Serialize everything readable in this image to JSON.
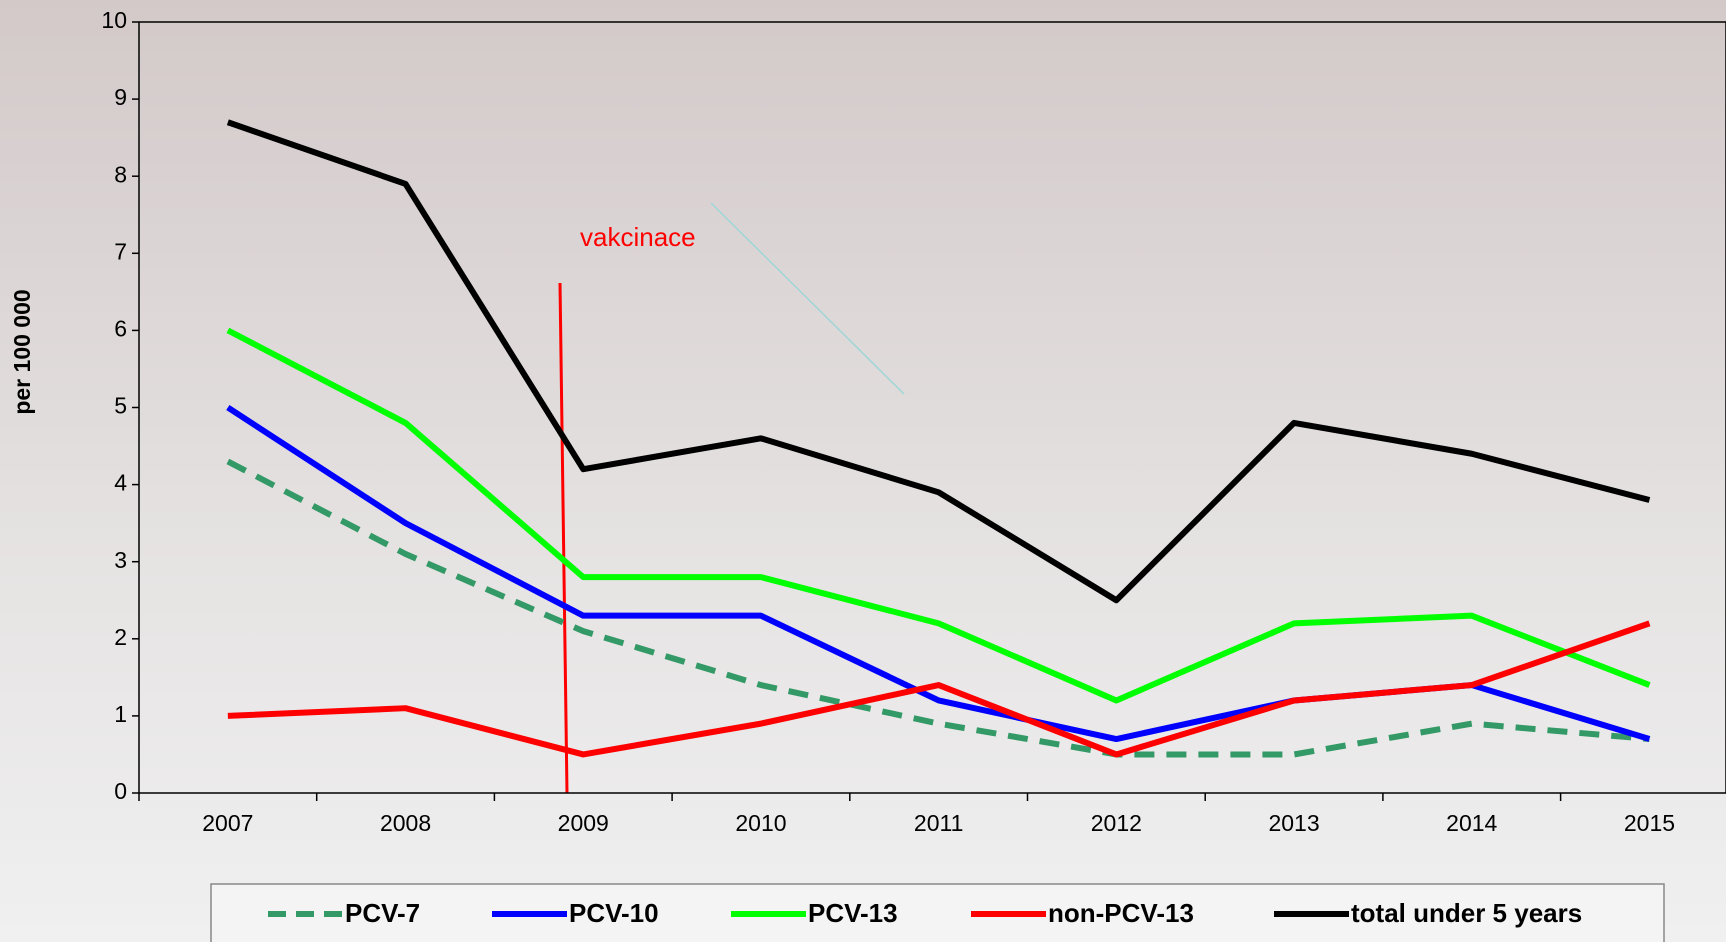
{
  "chart_data": {
    "type": "line",
    "y_label": "per 100 000",
    "annotation": "vakcinace",
    "categories": [
      "2007",
      "2008",
      "2009",
      "2010",
      "2011",
      "2012",
      "2013",
      "2014",
      "2015"
    ],
    "series": [
      {
        "name": "PCV-7",
        "color": "#339966",
        "dashed": true,
        "values": [
          4.3,
          3.1,
          2.1,
          1.4,
          0.9,
          0.5,
          0.5,
          0.9,
          0.7
        ]
      },
      {
        "name": "PCV-10",
        "color": "#0000ff",
        "values": [
          5.0,
          3.5,
          2.3,
          2.3,
          1.2,
          0.7,
          1.2,
          1.4,
          0.7
        ]
      },
      {
        "name": "PCV-13",
        "color": "#00ff00",
        "values": [
          6.0,
          4.8,
          2.8,
          2.8,
          2.2,
          1.2,
          2.2,
          2.3,
          1.4
        ]
      },
      {
        "name": "non-PCV-13",
        "color": "#ff0000",
        "values": [
          1.0,
          1.1,
          0.5,
          0.9,
          1.4,
          0.5,
          1.2,
          1.4,
          2.2
        ]
      },
      {
        "name": "total under 5 years",
        "color": "#000000",
        "values": [
          8.7,
          7.9,
          4.2,
          4.6,
          3.9,
          2.5,
          4.8,
          4.4,
          3.8
        ]
      }
    ],
    "ylim": [
      0,
      10
    ],
    "yticks": [
      0,
      1,
      2,
      3,
      4,
      5,
      6,
      7,
      8,
      9,
      10
    ],
    "legend": "bottom"
  }
}
